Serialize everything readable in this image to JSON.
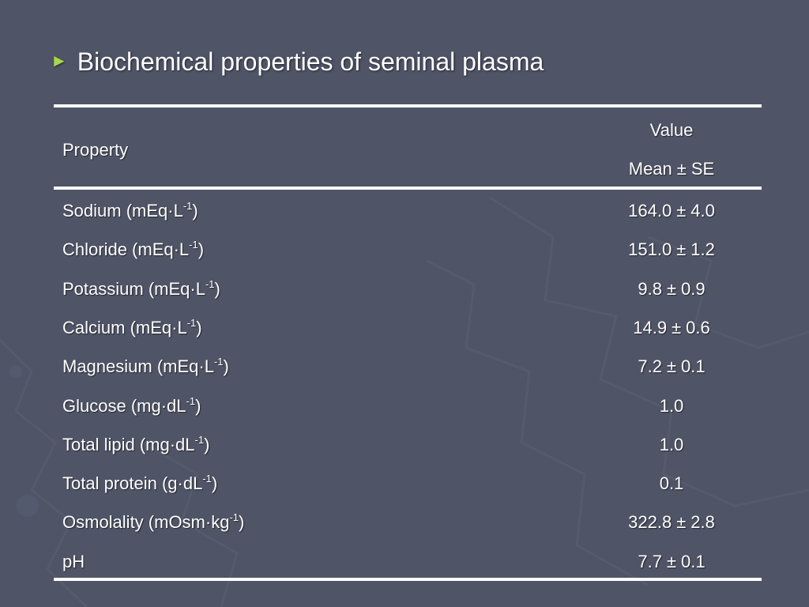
{
  "slide": {
    "title": "Biochemical properties of seminal plasma"
  },
  "colors": {
    "background": "#4f5466",
    "bullet": "#a8d84a",
    "text": "#ffffff"
  },
  "icons": {
    "bullet": "triangle-bullet-icon"
  },
  "table": {
    "headers": {
      "property": "Property",
      "value": "Value",
      "value_sub": "Mean",
      "value_sub_2": "SE",
      "pm": "±"
    },
    "rows": [
      {
        "name": "Sodium (mEq·L",
        "exp": "-1",
        "tail": ")",
        "mean": "164.0",
        "pm": "±",
        "se": "4.0"
      },
      {
        "name": "Chloride (mEq·L",
        "exp": "-1",
        "tail": ")",
        "mean": "151.0",
        "pm": "±",
        "se": "1.2"
      },
      {
        "name": "Potassium (mEq·L",
        "exp": "-1",
        "tail": ")",
        "mean": "9.8",
        "pm": "±",
        "se": "0.9"
      },
      {
        "name": "Calcium (mEq·L",
        "exp": "-1",
        "tail": ")",
        "mean": "14.9",
        "pm": "±",
        "se": "0.6"
      },
      {
        "name": "Magnesium (mEq·L",
        "exp": "-1",
        "tail": ")",
        "mean": "7.2",
        "pm": "±",
        "se": "0.1"
      },
      {
        "name": "Glucose (mg·dL",
        "exp": "-1",
        "tail": ")",
        "mean": "1.0",
        "pm": "",
        "se": ""
      },
      {
        "name": "Total lipid (mg·dL",
        "exp": "-1",
        "tail": ")",
        "mean": "1.0",
        "pm": "",
        "se": ""
      },
      {
        "name": "Total protein (g·dL",
        "exp": "-1",
        "tail": ")",
        "mean": "0.1",
        "pm": "",
        "se": ""
      },
      {
        "name": "Osmolality (mOsm·kg",
        "exp": "-1",
        "tail": ")",
        "mean": "322.8",
        "pm": "±",
        "se": "2.8"
      },
      {
        "name": "pH",
        "exp": "",
        "tail": "",
        "mean": "7.7",
        "pm": "±",
        "se": "0.1"
      }
    ]
  }
}
